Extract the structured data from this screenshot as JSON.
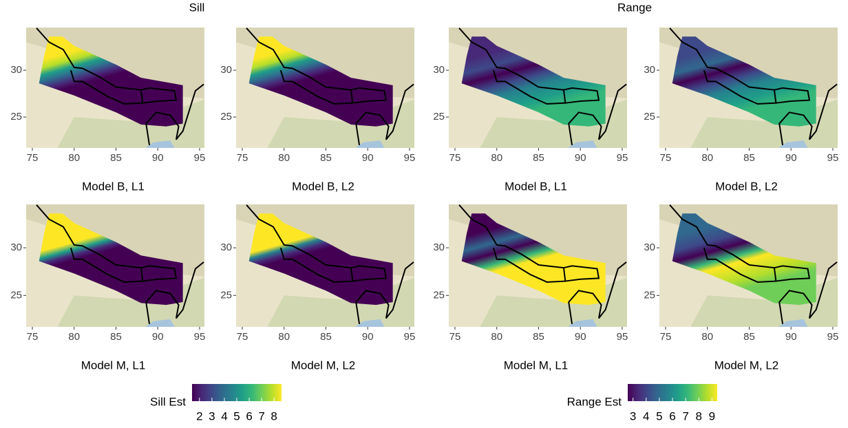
{
  "headers": [
    "Sill",
    "Range"
  ],
  "maps": {
    "xlim": [
      74.26,
      95.58
    ],
    "ylim": [
      21.7,
      34.56
    ],
    "xticks": [
      75,
      80,
      85,
      90,
      95
    ],
    "yticks": [
      25,
      30
    ]
  },
  "panels": [
    {
      "title": "Model B, L1"
    },
    {
      "title": "Model B, L2"
    },
    {
      "title": "Model B, L1"
    },
    {
      "title": "Model B, L2"
    },
    {
      "title": "Model M, L1"
    },
    {
      "title": "Model M, L2"
    },
    {
      "title": "Model M, L1"
    },
    {
      "title": "Model M, L2"
    }
  ],
  "legends": [
    {
      "title": "Sill Est",
      "lim": [
        1.4,
        8.6
      ],
      "ticks": [
        2,
        3,
        4,
        5,
        6,
        7,
        8
      ]
    },
    {
      "title": "Range Est",
      "lim": [
        2.6,
        9.4
      ],
      "ticks": [
        3,
        4,
        5,
        6,
        7,
        8,
        9
      ]
    }
  ]
}
